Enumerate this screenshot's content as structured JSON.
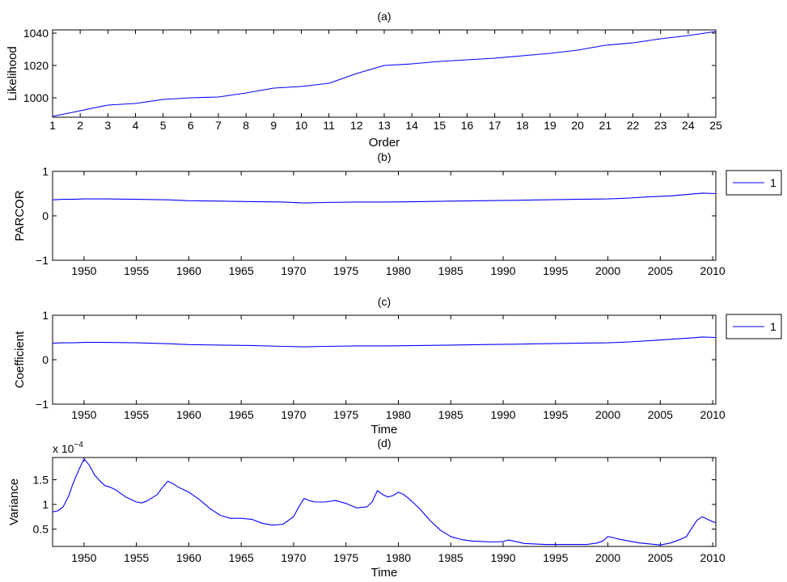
{
  "line_color": "#0000ff",
  "chart_data": [
    {
      "id": "a",
      "type": "line",
      "title": "(a)",
      "xlabel": "Order",
      "ylabel": "Likelihood",
      "xlim": [
        1,
        25
      ],
      "ylim": [
        988,
        1042
      ],
      "xticks": [
        1,
        2,
        3,
        4,
        5,
        6,
        7,
        8,
        9,
        10,
        11,
        12,
        13,
        14,
        15,
        16,
        17,
        18,
        19,
        20,
        21,
        22,
        23,
        24,
        25
      ],
      "yticks": [
        1000,
        1020,
        1040
      ],
      "legend": [],
      "series": [
        {
          "name": "likelihood",
          "x": [
            1,
            2,
            3,
            4,
            5,
            6,
            7,
            8,
            9,
            10,
            11,
            12,
            13,
            14,
            15,
            16,
            17,
            18,
            19,
            20,
            21,
            22,
            23,
            24,
            25
          ],
          "y": [
            988.5,
            992,
            995.5,
            996.5,
            999,
            1000,
            1000.5,
            1003,
            1006,
            1007,
            1009,
            1015,
            1020,
            1021,
            1022.5,
            1023.5,
            1024.5,
            1026,
            1027.5,
            1029.5,
            1032.5,
            1034,
            1036.5,
            1038.5,
            1041
          ]
        }
      ]
    },
    {
      "id": "b",
      "type": "line",
      "title": "(b)",
      "xlabel": "",
      "ylabel": "PARCOR",
      "xlim": [
        1947,
        2010.3
      ],
      "ylim": [
        -1,
        1
      ],
      "xticks": [
        1950,
        1955,
        1960,
        1965,
        1970,
        1975,
        1980,
        1985,
        1990,
        1995,
        2000,
        2005,
        2010
      ],
      "yticks": [
        -1,
        0,
        1
      ],
      "legend": [
        "1"
      ],
      "series": [
        {
          "name": "1",
          "x": [
            1947,
            1948,
            1949,
            1950,
            1952,
            1955,
            1958,
            1960,
            1963,
            1966,
            1969,
            1971,
            1973,
            1976,
            1979,
            1982,
            1985,
            1988,
            1991,
            1994,
            1997,
            2000,
            2002,
            2004,
            2006,
            2008,
            2009,
            2010.3
          ],
          "y": [
            0.36,
            0.37,
            0.37,
            0.38,
            0.38,
            0.37,
            0.36,
            0.34,
            0.33,
            0.32,
            0.31,
            0.29,
            0.3,
            0.31,
            0.31,
            0.32,
            0.33,
            0.34,
            0.35,
            0.36,
            0.37,
            0.38,
            0.4,
            0.43,
            0.45,
            0.49,
            0.51,
            0.5
          ]
        }
      ]
    },
    {
      "id": "c",
      "type": "line",
      "title": "(c)",
      "xlabel": "Time",
      "ylabel": "Coefficient",
      "xlim": [
        1947,
        2010.3
      ],
      "ylim": [
        -1,
        1
      ],
      "xticks": [
        1950,
        1955,
        1960,
        1965,
        1970,
        1975,
        1980,
        1985,
        1990,
        1995,
        2000,
        2005,
        2010
      ],
      "yticks": [
        -1,
        0,
        1
      ],
      "legend": [
        "1"
      ],
      "series": [
        {
          "name": "1",
          "x": [
            1947,
            1948,
            1949,
            1950,
            1952,
            1955,
            1958,
            1960,
            1963,
            1966,
            1969,
            1971,
            1973,
            1976,
            1979,
            1982,
            1985,
            1988,
            1991,
            1994,
            1997,
            2000,
            2002,
            2004,
            2006,
            2008,
            2009,
            2010.3
          ],
          "y": [
            0.37,
            0.38,
            0.38,
            0.39,
            0.39,
            0.38,
            0.36,
            0.34,
            0.33,
            0.32,
            0.3,
            0.29,
            0.3,
            0.31,
            0.31,
            0.32,
            0.33,
            0.34,
            0.35,
            0.36,
            0.37,
            0.38,
            0.4,
            0.43,
            0.46,
            0.49,
            0.51,
            0.5
          ]
        }
      ]
    },
    {
      "id": "d",
      "type": "line",
      "title": "(d)",
      "xlabel": "Time",
      "ylabel": "Variance",
      "exponent_label": "x 10",
      "exponent_value": "−4",
      "xlim": [
        1947,
        2010.3
      ],
      "ylim": [
        0.15,
        1.95
      ],
      "xticks": [
        1950,
        1955,
        1960,
        1965,
        1970,
        1975,
        1980,
        1985,
        1990,
        1995,
        2000,
        2005,
        2010
      ],
      "yticks": [
        0.5,
        1,
        1.5
      ],
      "yticklabels": [
        "0.5",
        "1",
        "1.5"
      ],
      "legend": [],
      "series": [
        {
          "name": "variance",
          "x": [
            1947,
            1947.5,
            1948,
            1948.5,
            1949,
            1949.5,
            1950,
            1950.5,
            1951,
            1951.5,
            1952,
            1952.5,
            1953,
            1953.5,
            1954,
            1955,
            1955.5,
            1956,
            1957,
            1957.5,
            1958,
            1958.5,
            1959,
            1960,
            1961,
            1962,
            1963,
            1964,
            1965,
            1966,
            1967,
            1968,
            1969,
            1970,
            1970.5,
            1971,
            1971.5,
            1972,
            1973,
            1974,
            1975,
            1976,
            1977,
            1977.5,
            1978,
            1978.5,
            1979,
            1979.5,
            1980,
            1980.5,
            1981,
            1982,
            1983,
            1984,
            1985,
            1986,
            1987,
            1988,
            1989,
            1990,
            1990.5,
            1991,
            1992,
            1993,
            1994,
            1995,
            1996,
            1997,
            1998,
            1999,
            1999.5,
            2000,
            2000.5,
            2001,
            2002,
            2003,
            2004,
            2005,
            2006,
            2007,
            2007.5,
            2008,
            2008.5,
            2009,
            2009.5,
            2010,
            2010.3
          ],
          "y": [
            0.85,
            0.87,
            0.95,
            1.15,
            1.45,
            1.7,
            1.92,
            1.8,
            1.6,
            1.48,
            1.38,
            1.35,
            1.3,
            1.22,
            1.15,
            1.05,
            1.03,
            1.07,
            1.2,
            1.35,
            1.47,
            1.42,
            1.35,
            1.25,
            1.1,
            0.92,
            0.78,
            0.72,
            0.72,
            0.7,
            0.62,
            0.58,
            0.6,
            0.75,
            0.95,
            1.12,
            1.08,
            1.05,
            1.05,
            1.08,
            1.02,
            0.93,
            0.95,
            1.05,
            1.28,
            1.2,
            1.15,
            1.18,
            1.25,
            1.2,
            1.12,
            0.92,
            0.68,
            0.48,
            0.35,
            0.29,
            0.26,
            0.25,
            0.24,
            0.25,
            0.28,
            0.26,
            0.21,
            0.2,
            0.19,
            0.19,
            0.19,
            0.19,
            0.19,
            0.22,
            0.26,
            0.35,
            0.33,
            0.3,
            0.26,
            0.22,
            0.2,
            0.18,
            0.22,
            0.3,
            0.35,
            0.52,
            0.68,
            0.75,
            0.7,
            0.65,
            0.63
          ]
        }
      ]
    }
  ]
}
